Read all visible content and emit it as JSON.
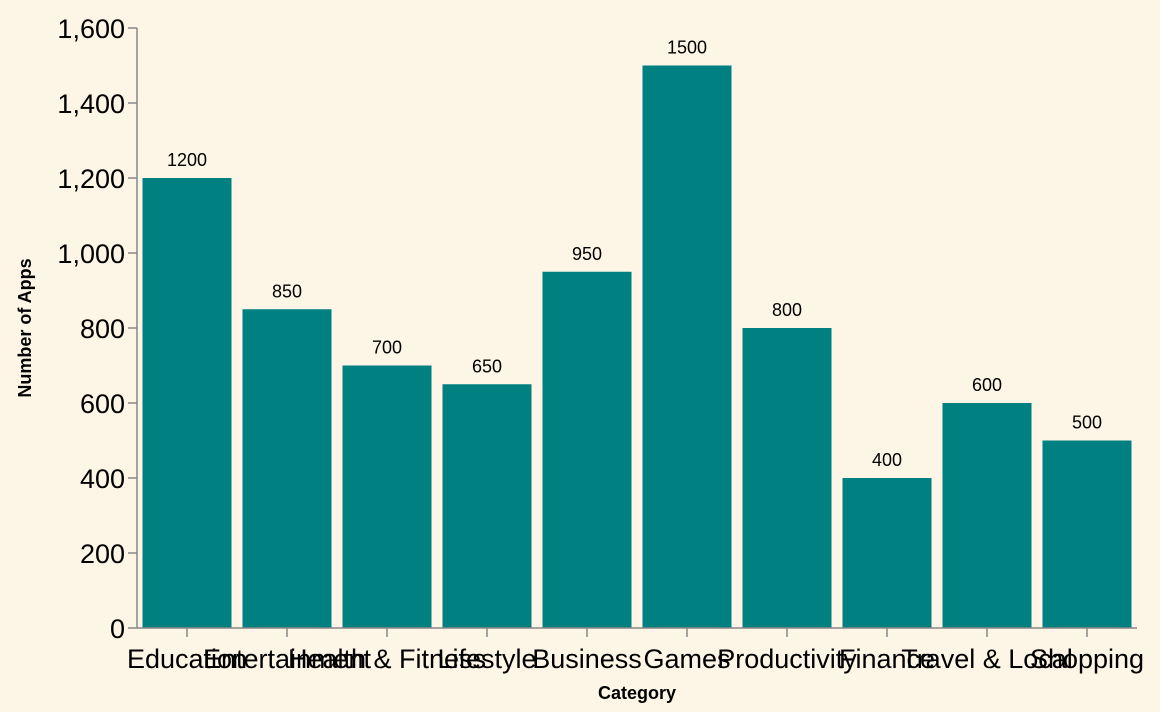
{
  "chart_data": {
    "type": "bar",
    "title": "",
    "xlabel": "Category",
    "ylabel": "Number of Apps",
    "categories": [
      "Education",
      "Entertainment",
      "Health & Fitness",
      "Lifestyle",
      "Business",
      "Games",
      "Productivity",
      "Finance",
      "Travel & Local",
      "Shopping"
    ],
    "values": [
      1200,
      850,
      700,
      650,
      950,
      1500,
      800,
      400,
      600,
      500
    ],
    "ylim": [
      0,
      1600
    ],
    "yticks": [
      0,
      200,
      400,
      600,
      800,
      1000,
      1200,
      1400,
      1600
    ],
    "ytick_labels": [
      "0",
      "200",
      "400",
      "600",
      "800",
      "1,000",
      "1,200",
      "1,400",
      "1,600"
    ],
    "grid": false,
    "legend": "none",
    "bar_color": "#008080",
    "background": "#fdf5e6"
  }
}
